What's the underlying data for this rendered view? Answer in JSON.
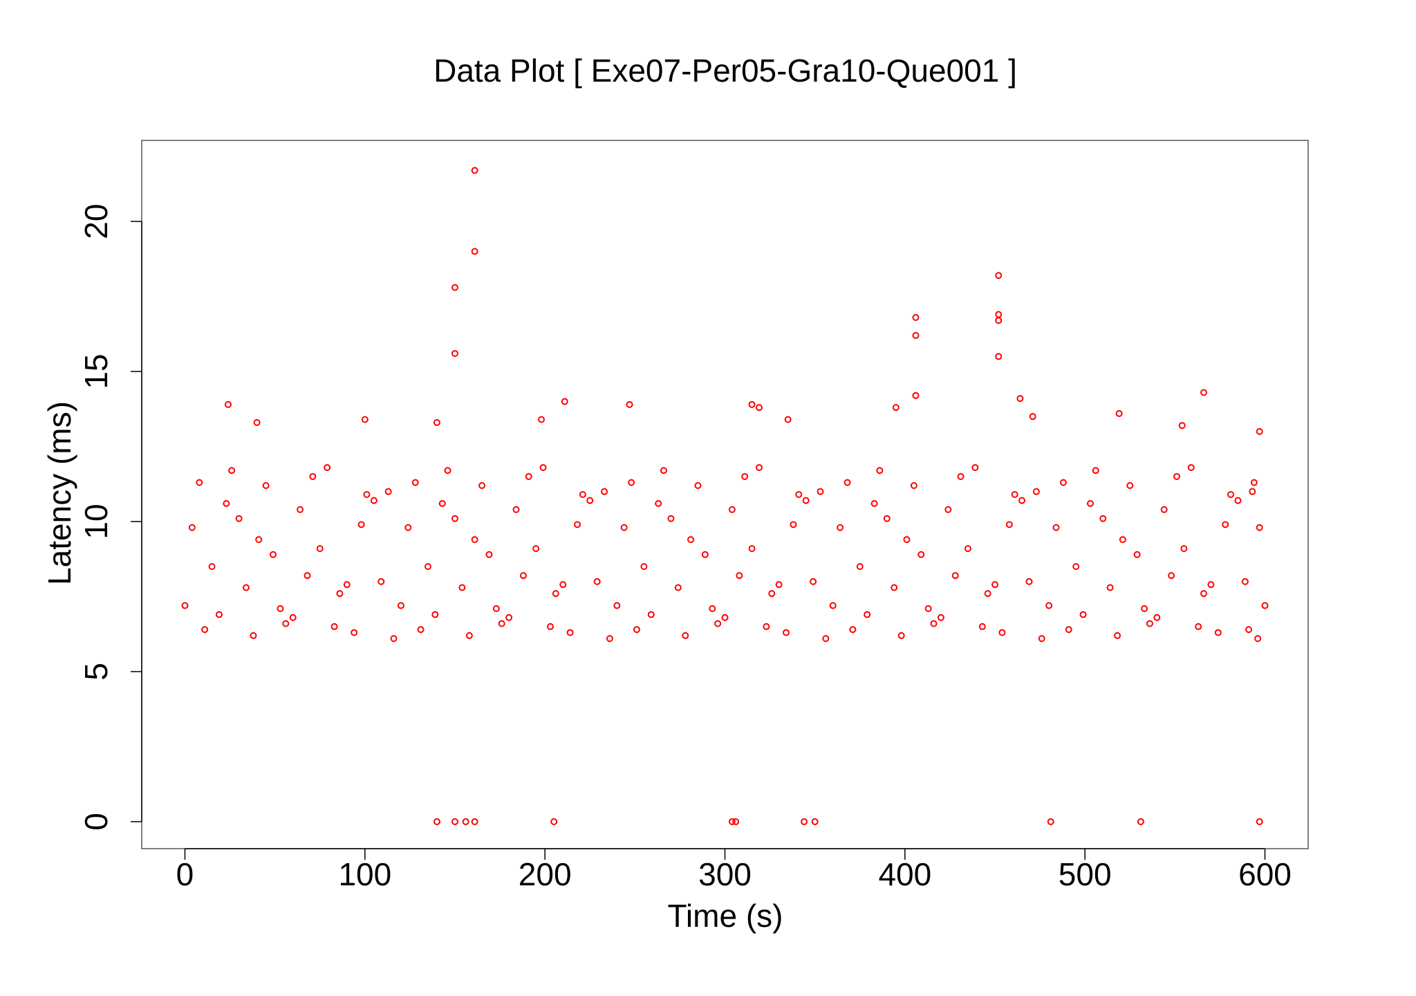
{
  "chart_data": {
    "type": "scatter",
    "title": "Data Plot [ Exe07-Per05-Gra10-Que001 ]",
    "x_label": "Time (s)",
    "y_label": "Latency (ms)",
    "color": "#ff0000",
    "x": [
      161,
      161,
      150,
      150,
      406,
      406,
      452,
      452,
      452,
      452,
      24,
      211,
      247,
      315,
      319,
      406,
      464,
      566,
      471,
      519,
      40,
      100,
      140,
      198,
      335,
      395,
      554,
      597,
      140,
      150,
      156,
      161,
      205,
      304,
      306,
      344,
      350,
      481,
      531,
      597,
      0,
      4,
      8,
      11,
      15,
      19,
      23,
      26,
      30,
      34,
      38,
      41,
      45,
      49,
      53,
      56,
      60,
      64,
      68,
      71,
      75,
      79,
      83,
      86,
      90,
      94,
      98,
      101,
      105,
      109,
      113,
      116,
      120,
      124,
      128,
      131,
      135,
      139,
      143,
      146,
      150,
      154,
      158,
      161,
      165,
      169,
      173,
      176,
      180,
      184,
      188,
      191,
      195,
      199,
      203,
      206,
      210,
      214,
      218,
      221,
      225,
      229,
      233,
      236,
      240,
      244,
      248,
      251,
      255,
      259,
      263,
      266,
      270,
      274,
      278,
      281,
      285,
      289,
      293,
      296,
      300,
      304,
      308,
      311,
      315,
      319,
      323,
      326,
      330,
      334,
      338,
      341,
      345,
      349,
      353,
      356,
      360,
      364,
      368,
      371,
      375,
      379,
      383,
      386,
      390,
      394,
      398,
      401,
      405,
      409,
      413,
      416,
      420,
      424,
      428,
      431,
      435,
      439,
      443,
      446,
      450,
      454,
      458,
      461,
      465,
      469,
      473,
      476,
      480,
      484,
      488,
      491,
      495,
      499,
      503,
      506,
      510,
      514,
      518,
      521,
      525,
      529,
      533,
      536,
      540,
      544,
      548,
      551,
      555,
      559,
      563,
      566,
      570,
      574,
      578,
      581,
      585,
      589,
      593,
      596,
      600,
      597,
      594,
      591
    ],
    "values": [
      21.7,
      19.0,
      17.8,
      15.6,
      16.8,
      16.2,
      18.2,
      16.9,
      16.7,
      15.5,
      13.9,
      14.0,
      13.9,
      13.9,
      13.8,
      14.2,
      14.1,
      14.3,
      13.5,
      13.6,
      13.3,
      13.4,
      13.3,
      13.4,
      13.4,
      13.8,
      13.2,
      13.0,
      0,
      0,
      0,
      0,
      0,
      0,
      0,
      0,
      0,
      0,
      0,
      0,
      7.2,
      9.8,
      11.3,
      6.4,
      8.5,
      6.9,
      10.6,
      11.7,
      10.1,
      7.8,
      6.2,
      9.4,
      11.2,
      8.9,
      7.1,
      6.6,
      6.8,
      10.4,
      8.2,
      11.5,
      9.1,
      11.8,
      6.5,
      7.6,
      7.9,
      6.3,
      9.9,
      10.9,
      10.7,
      8.0,
      11.0,
      6.1,
      7.2,
      9.8,
      11.3,
      6.4,
      8.5,
      6.9,
      10.6,
      11.7,
      10.1,
      7.8,
      6.2,
      9.4,
      11.2,
      8.9,
      7.1,
      6.6,
      6.8,
      10.4,
      8.2,
      11.5,
      9.1,
      11.8,
      6.5,
      7.6,
      7.9,
      6.3,
      9.9,
      10.9,
      10.7,
      8.0,
      11.0,
      6.1,
      7.2,
      9.8,
      11.3,
      6.4,
      8.5,
      6.9,
      10.6,
      11.7,
      10.1,
      7.8,
      6.2,
      9.4,
      11.2,
      8.9,
      7.1,
      6.6,
      6.8,
      10.4,
      8.2,
      11.5,
      9.1,
      11.8,
      6.5,
      7.6,
      7.9,
      6.3,
      9.9,
      10.9,
      10.7,
      8.0,
      11.0,
      6.1,
      7.2,
      9.8,
      11.3,
      6.4,
      8.5,
      6.9,
      10.6,
      11.7,
      10.1,
      7.8,
      6.2,
      9.4,
      11.2,
      8.9,
      7.1,
      6.6,
      6.8,
      10.4,
      8.2,
      11.5,
      9.1,
      11.8,
      6.5,
      7.6,
      7.9,
      6.3,
      9.9,
      10.9,
      10.7,
      8.0,
      11.0,
      6.1,
      7.2,
      9.8,
      11.3,
      6.4,
      8.5,
      6.9,
      10.6,
      11.7,
      10.1,
      7.8,
      6.2,
      9.4,
      11.2,
      8.9,
      7.1,
      6.6,
      6.8,
      10.4,
      8.2,
      11.5,
      9.1,
      11.8,
      6.5,
      7.6,
      7.9,
      6.3,
      9.9,
      10.9,
      10.7,
      8.0,
      11.0,
      6.1,
      7.2,
      9.8,
      11.3,
      6.4
    ],
    "xlim": [
      -24,
      624
    ],
    "xticks": [
      0,
      100,
      200,
      300,
      400,
      500,
      600
    ],
    "ylim": [
      -0.9,
      22.7
    ],
    "yticks": [
      0,
      5,
      10,
      15,
      20
    ]
  }
}
